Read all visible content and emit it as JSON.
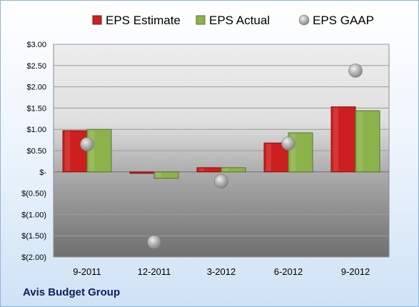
{
  "chart_data": {
    "type": "bar",
    "categories": [
      "9-2011",
      "12-2011",
      "3-2012",
      "6-2012",
      "9-2012"
    ],
    "series": [
      {
        "name": "EPS Estimate",
        "kind": "bar",
        "color": "#cc1f1f",
        "values": [
          0.97,
          -0.03,
          0.1,
          0.68,
          1.53
        ]
      },
      {
        "name": "EPS Actual",
        "kind": "bar",
        "color": "#8bb34a",
        "values": [
          1.0,
          -0.15,
          0.1,
          0.92,
          1.44
        ]
      },
      {
        "name": "EPS GAAP",
        "kind": "scatter",
        "color": "#a6a6a6",
        "values": [
          0.65,
          -1.65,
          -0.22,
          0.67,
          2.38
        ]
      }
    ],
    "y_ticks": [
      "$3.00",
      "$2.50",
      "$2.00",
      "$1.50",
      "$1.00",
      "$0.50",
      "$-",
      "$(0.50)",
      "$(1.00)",
      "$(1.50)",
      "$(2.00)"
    ],
    "ylim": [
      -2,
      3
    ],
    "grid": true,
    "legend_position": "top"
  },
  "footer": {
    "company": "Avis Budget Group"
  }
}
